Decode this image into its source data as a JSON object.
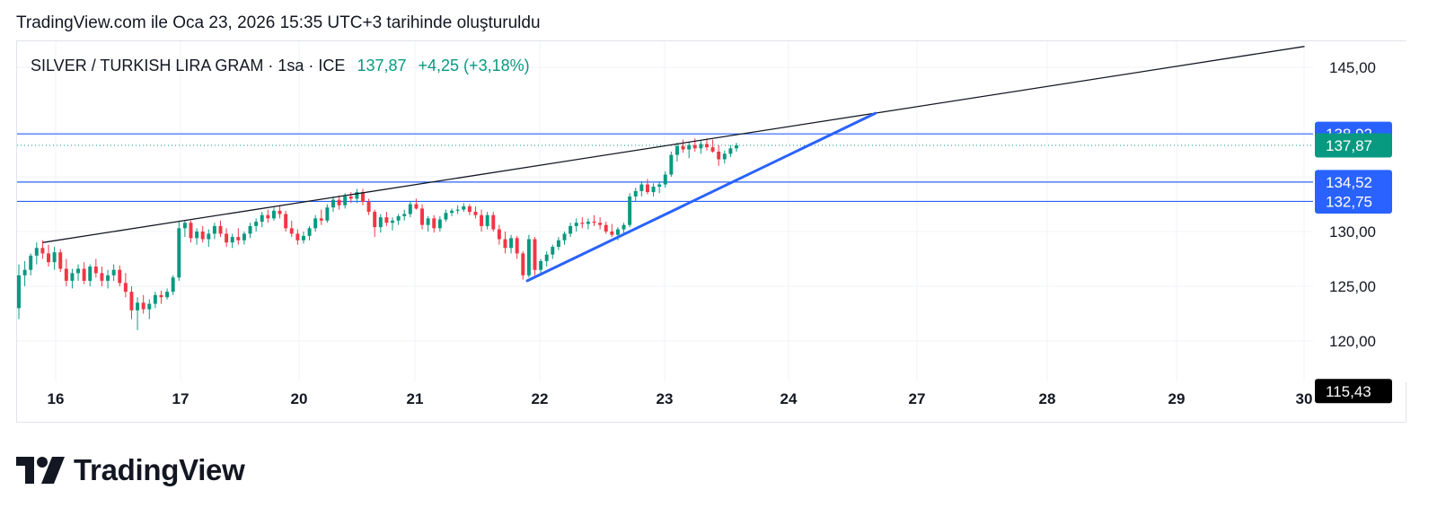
{
  "caption": "TradingView.com ile Oca 23, 2026 15:35 UTC+3 tarihinde oluşturuldu",
  "legend": {
    "symbol": "SILVER / TURKISH LIRA GRAM · 1sa · ICE",
    "price": "137,87",
    "change": "+4,25 (+3,18%)"
  },
  "logo": {
    "text": "TradingView",
    "icon": "tradingview-logo-icon"
  },
  "colors": {
    "up": "#089981",
    "down": "#f23645",
    "hline": "#2962ff",
    "trend_blue": "#2962ff",
    "trend_black": "#131722",
    "last_price": "#089981",
    "low_tag": "#000000"
  },
  "chart_data": {
    "type": "candlestick",
    "y_ticks": [
      "145,00",
      "130,00",
      "125,00",
      "120,00"
    ],
    "ylim": [
      115.4,
      147.5
    ],
    "x_ticks": [
      "16",
      "17",
      "20",
      "21",
      "22",
      "23",
      "24",
      "27",
      "28",
      "29",
      "30"
    ],
    "price_tags": [
      {
        "label": "138,92",
        "value": 138.92,
        "color": "#2962ff"
      },
      {
        "label": "137,87",
        "value": 137.87,
        "color": "#089981"
      },
      {
        "label": "134,52",
        "value": 134.52,
        "color": "#2962ff"
      },
      {
        "label": "132,75",
        "value": 132.75,
        "color": "#2962ff"
      },
      {
        "label": "115,43",
        "value": 115.43,
        "color": "#000000"
      }
    ],
    "horizontal_lines": [
      138.92,
      134.52,
      132.75
    ],
    "last_price_line": 137.87,
    "trendlines": [
      {
        "color": "black",
        "from": {
          "date": "16",
          "offset_hours": -1,
          "price": 129.0
        },
        "to": {
          "date": "30",
          "offset_hours": 0,
          "price": 146.9
        }
      },
      {
        "color": "blue",
        "from": {
          "date": "22",
          "offset_hours": -1,
          "price": 125.5
        },
        "to": {
          "date": "27",
          "offset_hours": -2,
          "price": 140.8
        }
      }
    ],
    "candles": [
      [
        123.0,
        127.0,
        122.0,
        126.0
      ],
      [
        126.0,
        127.3,
        125.0,
        126.5
      ],
      [
        126.5,
        128.0,
        126.0,
        127.8
      ],
      [
        127.8,
        129.0,
        127.0,
        128.5
      ],
      [
        128.5,
        129.2,
        127.5,
        128.0
      ],
      [
        128.0,
        128.8,
        126.8,
        127.2
      ],
      [
        127.2,
        128.6,
        126.5,
        128.1
      ],
      [
        128.1,
        128.4,
        126.3,
        126.6
      ],
      [
        126.6,
        127.5,
        125.0,
        125.5
      ],
      [
        125.5,
        126.6,
        124.8,
        126.2
      ],
      [
        126.2,
        127.0,
        125.5,
        126.6
      ],
      [
        126.6,
        127.2,
        125.2,
        125.5
      ],
      [
        125.5,
        127.0,
        125.0,
        126.8
      ],
      [
        126.8,
        127.5,
        125.8,
        126.2
      ],
      [
        126.2,
        126.8,
        125.0,
        125.5
      ],
      [
        125.5,
        126.5,
        124.8,
        126.0
      ],
      [
        126.0,
        127.0,
        125.5,
        126.5
      ],
      [
        126.5,
        126.9,
        125.0,
        125.3
      ],
      [
        125.3,
        126.2,
        124.0,
        124.5
      ],
      [
        124.5,
        125.0,
        122.0,
        122.8
      ],
      [
        122.8,
        124.0,
        121.0,
        123.5
      ],
      [
        123.5,
        124.2,
        122.5,
        122.9
      ],
      [
        122.9,
        123.8,
        122.0,
        123.4
      ],
      [
        123.4,
        124.5,
        123.0,
        124.2
      ],
      [
        124.2,
        124.6,
        123.4,
        124.0
      ],
      [
        124.0,
        124.8,
        123.8,
        124.5
      ],
      [
        124.5,
        126.0,
        124.2,
        125.8
      ],
      [
        125.8,
        131.0,
        125.5,
        130.3
      ],
      [
        130.3,
        131.0,
        129.5,
        130.8
      ],
      [
        130.8,
        131.0,
        129.0,
        129.4
      ],
      [
        129.4,
        130.3,
        128.8,
        130.0
      ],
      [
        130.0,
        130.5,
        129.0,
        129.3
      ],
      [
        129.3,
        130.2,
        128.6,
        129.8
      ],
      [
        129.8,
        130.8,
        129.3,
        130.5
      ],
      [
        130.5,
        131.0,
        129.5,
        129.8
      ],
      [
        129.8,
        130.3,
        128.6,
        129.0
      ],
      [
        129.0,
        129.8,
        128.5,
        129.5
      ],
      [
        129.5,
        130.3,
        128.8,
        129.2
      ],
      [
        129.2,
        130.0,
        128.8,
        129.8
      ],
      [
        129.8,
        130.8,
        129.4,
        130.5
      ],
      [
        130.5,
        131.2,
        130.0,
        130.9
      ],
      [
        130.9,
        131.8,
        130.4,
        131.5
      ],
      [
        131.5,
        132.0,
        130.8,
        131.2
      ],
      [
        131.2,
        132.2,
        131.0,
        131.9
      ],
      [
        131.9,
        132.4,
        131.2,
        131.6
      ],
      [
        131.6,
        131.9,
        130.0,
        130.3
      ],
      [
        130.3,
        131.0,
        129.5,
        129.8
      ],
      [
        129.8,
        130.2,
        128.8,
        129.2
      ],
      [
        129.2,
        130.0,
        128.9,
        129.6
      ],
      [
        129.6,
        130.5,
        129.2,
        130.3
      ],
      [
        130.3,
        131.5,
        130.0,
        131.2
      ],
      [
        131.2,
        132.0,
        130.6,
        131.0
      ],
      [
        131.0,
        132.5,
        130.8,
        132.2
      ],
      [
        132.2,
        133.2,
        131.8,
        132.9
      ],
      [
        132.9,
        133.3,
        132.0,
        132.4
      ],
      [
        132.4,
        133.5,
        132.1,
        133.2
      ],
      [
        133.2,
        133.6,
        132.6,
        133.0
      ],
      [
        133.0,
        133.9,
        132.6,
        133.6
      ],
      [
        133.6,
        133.9,
        132.4,
        132.7
      ],
      [
        132.7,
        133.0,
        131.5,
        131.8
      ],
      [
        131.8,
        132.0,
        129.5,
        130.4
      ],
      [
        130.4,
        131.6,
        129.9,
        131.3
      ],
      [
        131.3,
        131.8,
        130.5,
        130.8
      ],
      [
        130.8,
        131.3,
        130.1,
        131.0
      ],
      [
        131.0,
        131.6,
        130.6,
        131.4
      ],
      [
        131.4,
        132.0,
        131.0,
        131.6
      ],
      [
        131.6,
        132.8,
        131.3,
        132.5
      ],
      [
        132.5,
        133.0,
        132.0,
        132.1
      ],
      [
        132.1,
        132.5,
        130.2,
        130.6
      ],
      [
        130.6,
        131.4,
        130.0,
        131.2
      ],
      [
        131.2,
        131.5,
        129.9,
        130.3
      ],
      [
        130.3,
        131.4,
        130.0,
        131.1
      ],
      [
        131.1,
        132.0,
        130.9,
        131.7
      ],
      [
        131.7,
        132.1,
        131.4,
        131.9
      ],
      [
        131.9,
        132.4,
        131.6,
        132.0
      ],
      [
        132.0,
        132.6,
        131.8,
        132.3
      ],
      [
        132.3,
        132.5,
        131.5,
        131.8
      ],
      [
        131.8,
        132.3,
        131.2,
        131.5
      ],
      [
        131.5,
        132.0,
        130.0,
        130.5
      ],
      [
        130.5,
        131.8,
        130.2,
        131.5
      ],
      [
        131.5,
        131.8,
        130.0,
        130.2
      ],
      [
        130.2,
        130.6,
        128.8,
        129.3
      ],
      [
        129.3,
        130.0,
        128.0,
        128.5
      ],
      [
        128.5,
        129.7,
        128.0,
        129.4
      ],
      [
        129.4,
        129.6,
        127.5,
        128.0
      ],
      [
        128.0,
        128.2,
        125.6,
        126.0
      ],
      [
        126.0,
        129.7,
        125.8,
        129.3
      ],
      [
        129.3,
        129.5,
        126.0,
        126.5
      ],
      [
        126.5,
        127.5,
        126.0,
        127.3
      ],
      [
        127.3,
        128.2,
        126.8,
        127.9
      ],
      [
        127.9,
        128.8,
        127.5,
        128.6
      ],
      [
        128.6,
        129.5,
        128.3,
        129.2
      ],
      [
        129.2,
        130.0,
        128.8,
        129.8
      ],
      [
        129.8,
        130.8,
        129.5,
        130.5
      ],
      [
        130.5,
        131.2,
        130.0,
        130.8
      ],
      [
        130.8,
        131.3,
        130.3,
        130.7
      ],
      [
        130.7,
        131.2,
        130.2,
        130.9
      ],
      [
        130.9,
        131.5,
        130.5,
        130.8
      ],
      [
        130.8,
        131.3,
        130.2,
        130.6
      ],
      [
        130.6,
        130.9,
        129.8,
        130.0
      ],
      [
        130.0,
        130.7,
        129.5,
        129.7
      ],
      [
        129.7,
        130.4,
        129.2,
        130.2
      ],
      [
        130.2,
        130.8,
        129.8,
        130.6
      ],
      [
        130.6,
        133.5,
        130.4,
        133.2
      ],
      [
        133.2,
        134.0,
        132.8,
        133.7
      ],
      [
        133.7,
        134.6,
        133.2,
        134.3
      ],
      [
        134.3,
        134.8,
        133.4,
        133.6
      ],
      [
        133.6,
        134.4,
        133.2,
        134.1
      ],
      [
        134.1,
        134.6,
        133.5,
        134.3
      ],
      [
        134.3,
        135.5,
        134.0,
        135.2
      ],
      [
        135.2,
        137.3,
        135.0,
        137.0
      ],
      [
        137.0,
        138.1,
        136.4,
        137.8
      ],
      [
        137.8,
        138.4,
        137.2,
        137.5
      ],
      [
        137.5,
        138.2,
        136.7,
        137.9
      ],
      [
        137.9,
        138.5,
        137.3,
        137.6
      ],
      [
        137.6,
        138.3,
        137.1,
        138.0
      ],
      [
        138.0,
        138.5,
        137.4,
        137.7
      ],
      [
        137.7,
        138.4,
        137.2,
        137.3
      ],
      [
        137.3,
        137.9,
        136.0,
        136.6
      ],
      [
        136.6,
        137.4,
        136.2,
        137.1
      ],
      [
        137.1,
        137.9,
        136.8,
        137.6
      ],
      [
        137.6,
        138.1,
        137.3,
        137.87
      ]
    ]
  }
}
